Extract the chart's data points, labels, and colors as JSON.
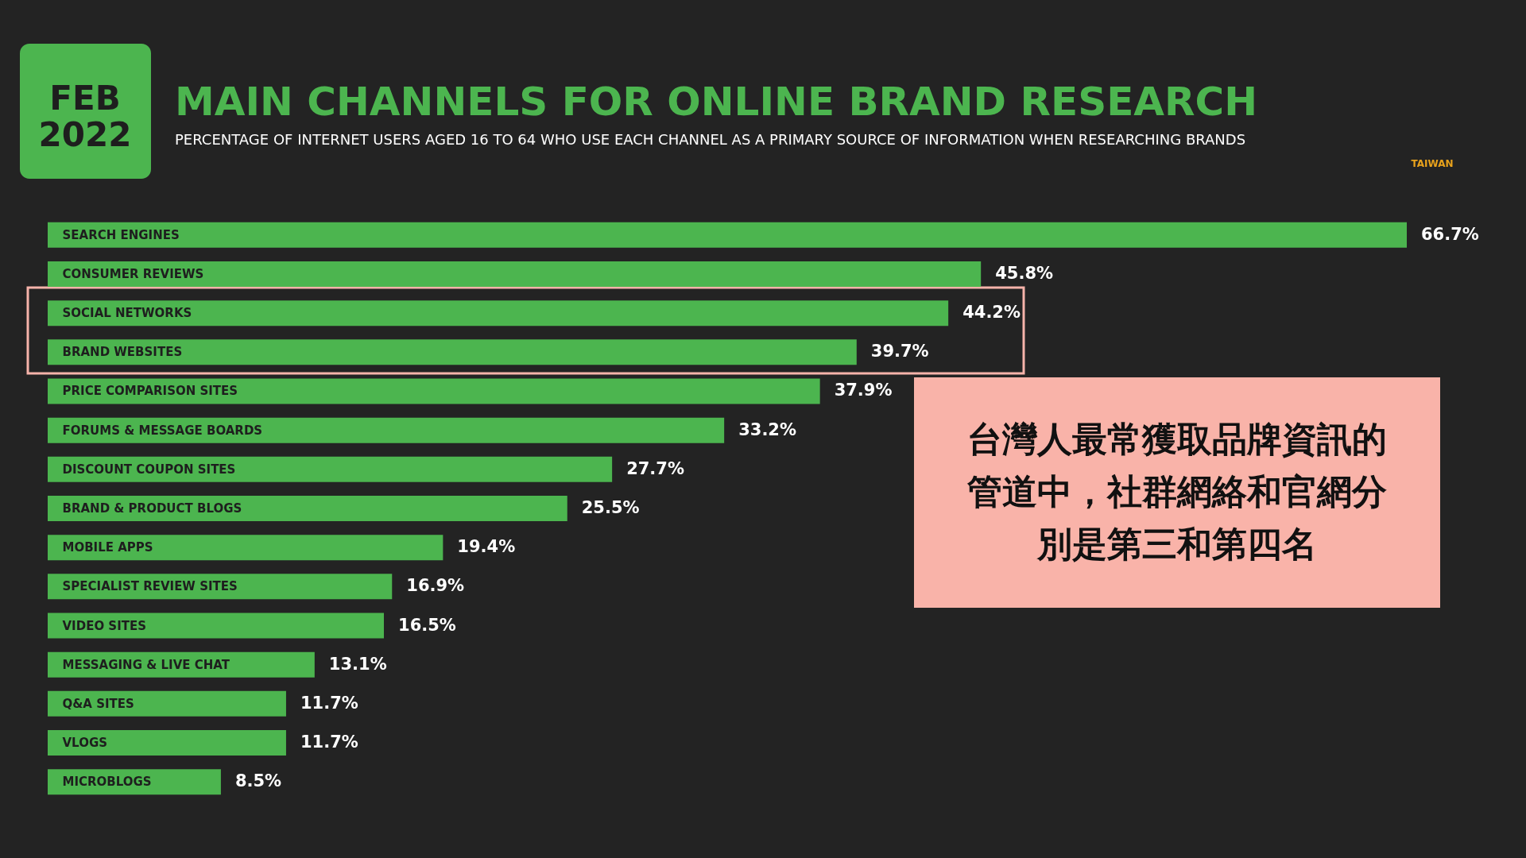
{
  "chart_data": {
    "type": "bar",
    "orientation": "horizontal",
    "title": "MAIN CHANNELS FOR ONLINE BRAND RESEARCH",
    "subtitle": "PERCENTAGE OF INTERNET USERS AGED 16 TO 64 WHO USE EACH CHANNEL AS A PRIMARY SOURCE OF INFORMATION WHEN RESEARCHING BRANDS",
    "categories": [
      "SEARCH ENGINES",
      "CONSUMER REVIEWS",
      "SOCIAL NETWORKS",
      "BRAND WEBSITES",
      "PRICE COMPARISON SITES",
      "FORUMS & MESSAGE BOARDS",
      "DISCOUNT COUPON SITES",
      "BRAND & PRODUCT BLOGS",
      "MOBILE APPS",
      "SPECIALIST REVIEW SITES",
      "VIDEO SITES",
      "MESSAGING & LIVE CHAT",
      "Q&A SITES",
      "VLOGS",
      "MICROBLOGS"
    ],
    "values": [
      66.7,
      45.8,
      44.2,
      39.7,
      37.9,
      33.2,
      27.7,
      25.5,
      19.4,
      16.9,
      16.5,
      13.1,
      11.7,
      11.7,
      8.5
    ],
    "value_labels": [
      "66.7%",
      "45.8%",
      "44.2%",
      "39.7%",
      "37.9%",
      "33.2%",
      "27.7%",
      "25.5%",
      "19.4%",
      "16.9%",
      "16.5%",
      "13.1%",
      "11.7%",
      "11.7%",
      "8.5%"
    ],
    "color": "#4cb54f",
    "annotations": [
      "FEB\n2022",
      "TAIWAN",
      "台灣人最常獲取品牌資訊的管道中，社群網絡和官網分別是第三和第四名"
    ]
  }
}
